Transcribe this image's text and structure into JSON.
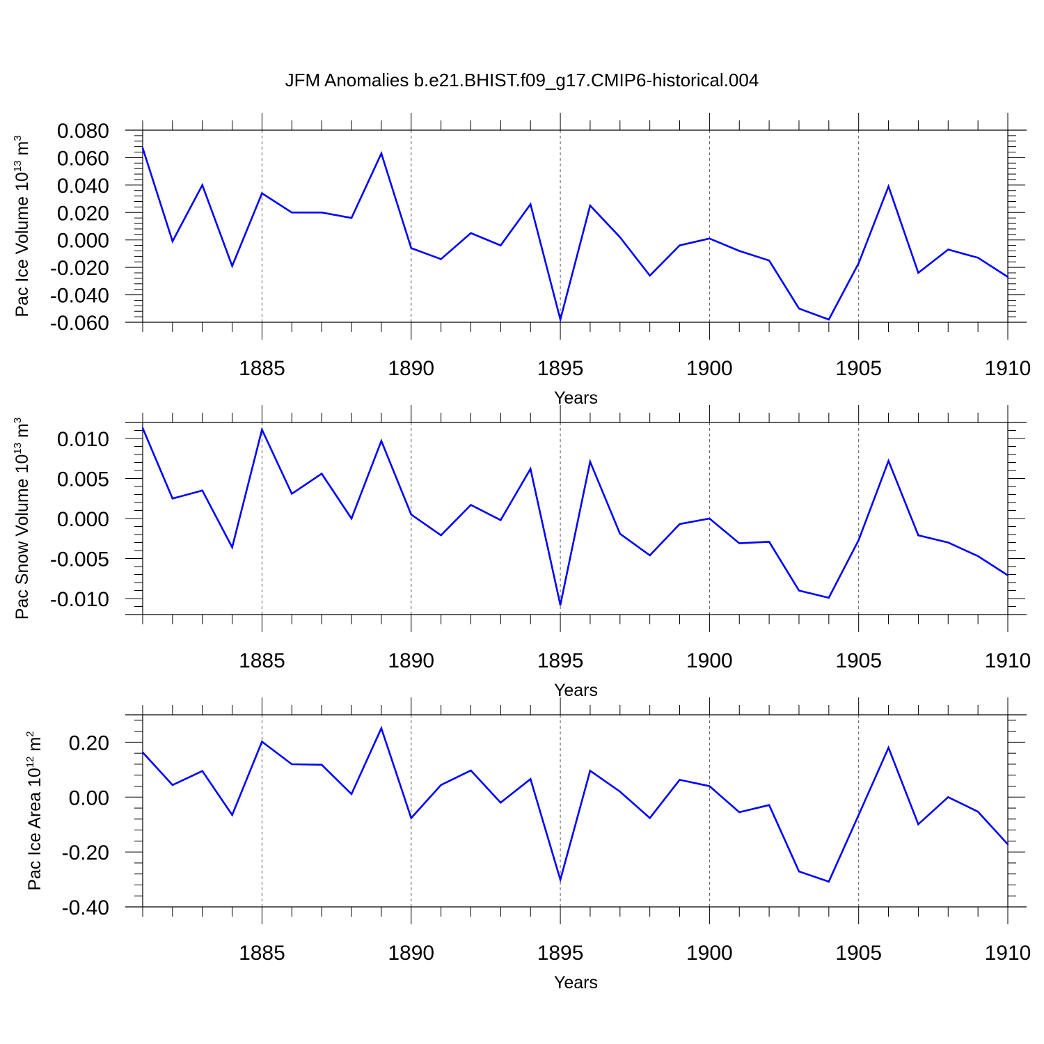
{
  "title": "JFM Anomalies b.e21.BHIST.f09_g17.CMIP6-historical.004",
  "line_color": "#0000ff",
  "chart_data": [
    {
      "type": "line",
      "ylabel": {
        "base": "Pac Ice Volume 10",
        "exp": "13",
        "unit": " m",
        "unit_exp": "3"
      },
      "xlabel": "Years",
      "xlim": [
        1881,
        1910
      ],
      "ylim": [
        -0.06,
        0.08
      ],
      "x_ticks": [
        "1885",
        "1890",
        "1895",
        "1900",
        "1905",
        "1910"
      ],
      "y_ticks": [
        "0.080",
        "0.060",
        "0.040",
        "0.020",
        "0.000",
        "-0.020",
        "-0.040",
        "-0.060"
      ],
      "grid": "dashed vertical at major x ticks",
      "x": [
        1881,
        1882,
        1883,
        1884,
        1885,
        1886,
        1887,
        1888,
        1889,
        1890,
        1891,
        1892,
        1893,
        1894,
        1895,
        1896,
        1897,
        1898,
        1899,
        1900,
        1901,
        1902,
        1903,
        1904,
        1905,
        1906,
        1907,
        1908,
        1909,
        1910
      ],
      "values": [
        0.067,
        -0.001,
        0.04,
        -0.019,
        0.034,
        0.02,
        0.02,
        0.016,
        0.063,
        -0.006,
        -0.014,
        0.005,
        -0.004,
        0.026,
        -0.058,
        0.025,
        0.002,
        -0.026,
        -0.004,
        0.001,
        -0.008,
        -0.015,
        -0.05,
        -0.058,
        -0.017,
        0.039,
        -0.024,
        -0.007,
        -0.013,
        -0.027
      ]
    },
    {
      "type": "line",
      "ylabel": {
        "base": "Pac Snow Volume 10",
        "exp": "13",
        "unit": " m",
        "unit_exp": "3"
      },
      "xlabel": "Years",
      "xlim": [
        1881,
        1910
      ],
      "ylim": [
        -0.012,
        0.012
      ],
      "x_ticks": [
        "1885",
        "1890",
        "1895",
        "1900",
        "1905",
        "1910"
      ],
      "y_ticks": [
        "0.010",
        "0.005",
        "0.000",
        "-0.005",
        "-0.010"
      ],
      "grid": "dashed vertical at major x ticks",
      "x": [
        1881,
        1882,
        1883,
        1884,
        1885,
        1886,
        1887,
        1888,
        1889,
        1890,
        1891,
        1892,
        1893,
        1894,
        1895,
        1896,
        1897,
        1898,
        1899,
        1900,
        1901,
        1902,
        1903,
        1904,
        1905,
        1906,
        1907,
        1908,
        1909,
        1910
      ],
      "values": [
        0.0113,
        0.0025,
        0.0035,
        -0.0036,
        0.0111,
        0.0031,
        0.0056,
        0.0,
        0.0097,
        0.0005,
        -0.0021,
        0.0017,
        -0.0002,
        0.0062,
        -0.0108,
        0.0071,
        -0.0019,
        -0.0046,
        -0.0007,
        0.0,
        -0.0031,
        -0.0029,
        -0.009,
        -0.0099,
        -0.0027,
        0.0072,
        -0.0021,
        -0.003,
        -0.0047,
        -0.0071
      ]
    },
    {
      "type": "line",
      "ylabel": {
        "base": "Pac Ice Area 10",
        "exp": "12",
        "unit": " m",
        "unit_exp": "2"
      },
      "xlabel": "Years",
      "xlim": [
        1881,
        1910
      ],
      "ylim": [
        -0.4,
        0.3
      ],
      "x_ticks": [
        "1885",
        "1890",
        "1895",
        "1900",
        "1905",
        "1910"
      ],
      "y_ticks": [
        "0.20",
        "0.00",
        "-0.20",
        "-0.40"
      ],
      "grid": "dashed vertical at major x ticks",
      "x": [
        1881,
        1882,
        1883,
        1884,
        1885,
        1886,
        1887,
        1888,
        1889,
        1890,
        1891,
        1892,
        1893,
        1894,
        1895,
        1896,
        1897,
        1898,
        1899,
        1900,
        1901,
        1902,
        1903,
        1904,
        1905,
        1906,
        1907,
        1908,
        1909,
        1910
      ],
      "values": [
        0.163,
        0.044,
        0.095,
        -0.065,
        0.202,
        0.12,
        0.118,
        0.011,
        0.251,
        -0.076,
        0.044,
        0.097,
        -0.02,
        0.066,
        -0.301,
        0.096,
        0.02,
        -0.076,
        0.063,
        0.04,
        -0.055,
        -0.029,
        -0.271,
        -0.308,
        -0.065,
        0.18,
        -0.099,
        0.0,
        -0.053,
        -0.172
      ]
    }
  ]
}
